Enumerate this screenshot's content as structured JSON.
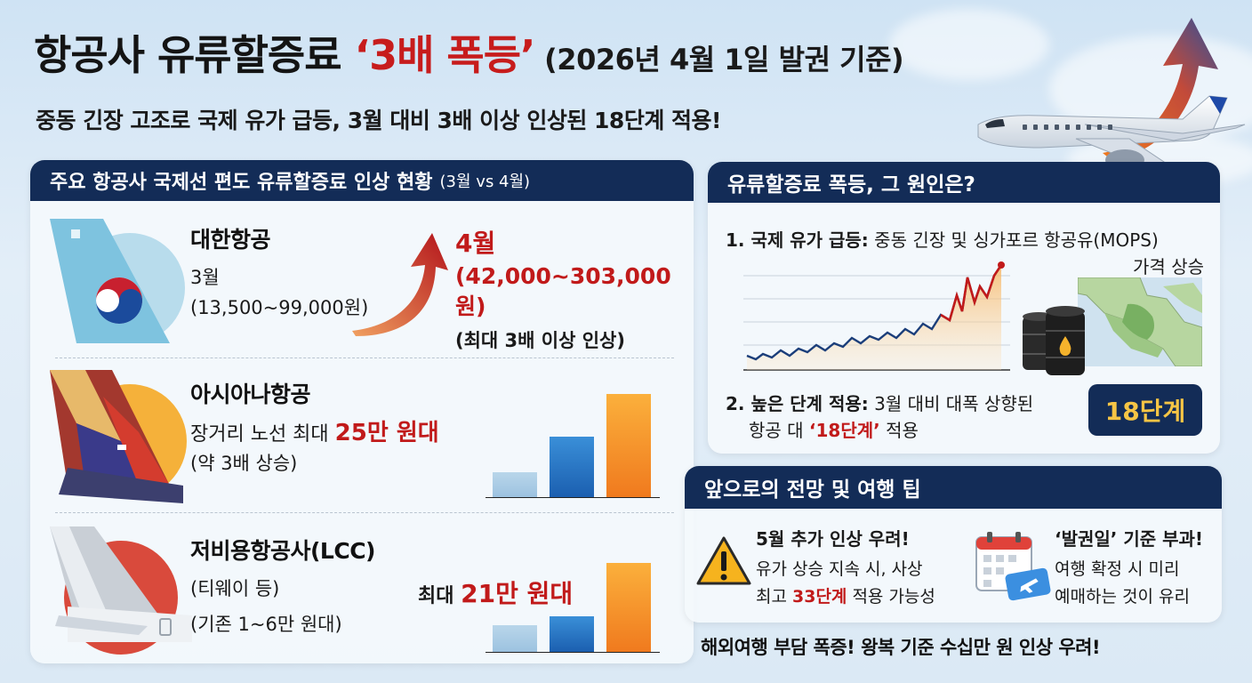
{
  "header": {
    "title_main": "항공사 유류할증료 ",
    "title_accent": "‘3배 폭등’",
    "title_date": " (2026년 4월 1일 발권 기준)",
    "subtitle": "중동 긴장 고조로 국제 유가 급등, 3월 대비 3배 이상 인상된 18단계 적용!"
  },
  "left_panel": {
    "title": "주요 항공사 국제선 편도 유류할증료 인상 현황",
    "title_small": "(3월 vs 4월)",
    "korean_air": {
      "name": "대한항공",
      "march_label": "3월",
      "march_range": "(13,500~99,000원)",
      "april_label": "4월",
      "april_range": "(42,000~303,000원)",
      "april_note": "(최대 3배 이상 인상)"
    },
    "asiana": {
      "name": "아시아나항공",
      "line1_prefix": "장거리 노선 최대 ",
      "line1_value": "25만 원대",
      "line2": "(약 3배 상승)"
    },
    "lcc": {
      "name": "저비용항공사(LCC)",
      "line1": "(티웨이 등)",
      "line2": "(기존 1~6만 원대)",
      "max_prefix": "최대 ",
      "max_value": "21만 원대"
    }
  },
  "cause_panel": {
    "title": "유류할증료 폭등, 그 원인은?",
    "cause1_label": "1. 국제 유가 급등:",
    "cause1_text": " 중동 긴장 및 싱가포르 항공유(MOPS)",
    "cause1_text2": "가격 상승",
    "cause2_label": "2. 높은 단계 적용:",
    "cause2_text": " 3월 대비 대폭 상향된",
    "cause2_text2_prefix": "항공 대 ",
    "cause2_text2_value": "‘18단계’",
    "cause2_text2_suffix": " 적용",
    "badge": "18단계"
  },
  "outlook_panel": {
    "title": "앞으로의 전망 및 여행 팁",
    "tip1_title": "5월 추가 인상 우려!",
    "tip1_line1": "유가 상승 지속 시, 사상",
    "tip1_line2_prefix": "최고 ",
    "tip1_line2_value": "33단계",
    "tip1_line2_suffix": " 적용 가능성",
    "tip2_title": "‘발권일’ 기준 부과!",
    "tip2_line1": "여행 확정 시 미리",
    "tip2_line2": "예매하는 것이 유리"
  },
  "footer": "해외여행 부담 폭증! 왕복 기준 수십만 원 인상 우려!",
  "colors": {
    "navy": "#132c57",
    "red": "#c11a1a",
    "gold": "#f6c545"
  },
  "icons": [
    "korean-air-tail-icon",
    "asiana-tail-icon",
    "lcc-tail-icon",
    "up-arrow-icon",
    "airplane-icon",
    "oil-barrel-icon",
    "map-icon",
    "warning-icon",
    "calendar-ticket-icon"
  ]
}
